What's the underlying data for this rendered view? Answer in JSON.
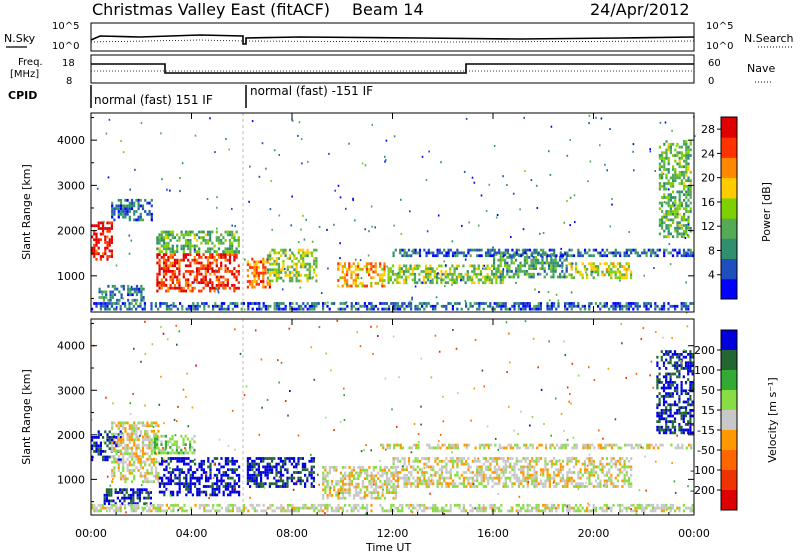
{
  "header": {
    "title": "Christmas Valley East (fitACF)",
    "beam": "Beam 14",
    "date": "24/Apr/2012"
  },
  "noise_panel": {
    "left_label": "N.Sky",
    "left_ticks": [
      "10^5",
      "10^0"
    ],
    "right_ticks": [
      "10^5",
      "10^0"
    ],
    "right_label": "N.Search"
  },
  "freq_panel": {
    "left_label_1": "Freq.",
    "left_label_2": "[MHz]",
    "left_ticks": [
      "18",
      "8"
    ],
    "right_ticks": [
      "60",
      "0"
    ],
    "right_label": "Nave"
  },
  "cpid": {
    "label": "CPID",
    "segments": [
      "normal (fast) 151 IF",
      "normal (fast) -151 IF"
    ]
  },
  "colors": {
    "power": [
      "#0000ff",
      "#1f4fbf",
      "#2f8f6f",
      "#55aa55",
      "#7fd000",
      "#ffcc00",
      "#ff8800",
      "#ff3300",
      "#e00000"
    ],
    "velocity": [
      "#0000dd",
      "#226633",
      "#33aa33",
      "#88dd44",
      "#c8c8c8",
      "#ff9900",
      "#ff6600",
      "#ee3300",
      "#dd0000"
    ]
  },
  "chart_data": [
    {
      "type": "heatmap",
      "title": "Power",
      "ylabel": "Slant Range [km]",
      "xlabel": "Time UT",
      "xticks": [
        "00:00",
        "04:00",
        "08:00",
        "12:00",
        "16:00",
        "20:00",
        "00:00"
      ],
      "xlim_hours": [
        0,
        24
      ],
      "ylim": [
        200,
        4600
      ],
      "yticks": [
        1000,
        2000,
        3000,
        4000
      ],
      "colorbar": {
        "label": "Power [dB]",
        "ticks": [
          4,
          8,
          12,
          16,
          20,
          24,
          28
        ],
        "range": [
          0,
          30
        ]
      },
      "features": [
        {
          "t_start": 0.0,
          "t_end": 0.9,
          "r_low": 1300,
          "r_high": 2200,
          "value_dB": 28
        },
        {
          "t_start": 0.3,
          "t_end": 2.2,
          "r_low": 400,
          "r_high": 800,
          "value_dB": 8
        },
        {
          "t_start": 0.8,
          "t_end": 2.5,
          "r_low": 2200,
          "r_high": 2700,
          "value_dB": 6
        },
        {
          "t_start": 2.6,
          "t_end": 6.0,
          "r_low": 600,
          "r_high": 1500,
          "value_dB": 26
        },
        {
          "t_start": 2.6,
          "t_end": 6.0,
          "r_low": 1500,
          "r_high": 2000,
          "value_dB": 12
        },
        {
          "t_start": 6.2,
          "t_end": 7.2,
          "r_low": 700,
          "r_high": 1400,
          "value_dB": 22
        },
        {
          "t_start": 7.0,
          "t_end": 9.1,
          "r_low": 800,
          "r_high": 1600,
          "value_dB": 14
        },
        {
          "t_start": 9.8,
          "t_end": 11.8,
          "r_low": 700,
          "r_high": 1300,
          "value_dB": 20
        },
        {
          "t_start": 11.8,
          "t_end": 16.5,
          "r_low": 800,
          "r_high": 1250,
          "value_dB": 14
        },
        {
          "t_start": 16.0,
          "t_end": 19.0,
          "r_low": 900,
          "r_high": 1500,
          "value_dB": 10
        },
        {
          "t_start": 19.0,
          "t_end": 21.6,
          "r_low": 900,
          "r_high": 1300,
          "value_dB": 16
        },
        {
          "t_start": 12.0,
          "t_end": 24.0,
          "r_low": 1400,
          "r_high": 1600,
          "value_dB": 6
        },
        {
          "t_start": 22.6,
          "t_end": 24.0,
          "r_low": 1800,
          "r_high": 4000,
          "value_dB": 12
        },
        {
          "t_start": 0.0,
          "t_end": 24.0,
          "r_low": 220,
          "r_high": 420,
          "value_dB": 6
        }
      ]
    },
    {
      "type": "heatmap",
      "title": "Velocity",
      "ylabel": "Slant Range [km]",
      "xlabel": "Time UT",
      "xticks": [
        "00:00",
        "04:00",
        "08:00",
        "12:00",
        "16:00",
        "20:00",
        "00:00"
      ],
      "xlim_hours": [
        0,
        24
      ],
      "ylim": [
        200,
        4600
      ],
      "yticks": [
        1000,
        2000,
        3000,
        4000
      ],
      "colorbar": {
        "label": "Velocity [m s⁻¹]",
        "ticks": [
          200,
          100,
          50,
          15,
          -15,
          -50,
          -100,
          -200
        ],
        "range": [
          -250,
          250
        ]
      },
      "features": [
        {
          "t_start": 0.0,
          "t_end": 1.3,
          "r_low": 1400,
          "r_high": 2100,
          "value_ms": 220
        },
        {
          "t_start": 0.5,
          "t_end": 2.5,
          "r_low": 400,
          "r_high": 800,
          "value_ms": 200
        },
        {
          "t_start": 0.8,
          "t_end": 2.8,
          "r_low": 900,
          "r_high": 2300,
          "value_ms": 0
        },
        {
          "t_start": 2.7,
          "t_end": 6.0,
          "r_low": 600,
          "r_high": 1500,
          "value_ms": 230
        },
        {
          "t_start": 2.5,
          "t_end": 4.2,
          "r_low": 1500,
          "r_high": 2000,
          "value_ms": 60
        },
        {
          "t_start": 6.2,
          "t_end": 9.0,
          "r_low": 800,
          "r_high": 1500,
          "value_ms": 210
        },
        {
          "t_start": 9.2,
          "t_end": 12.2,
          "r_low": 500,
          "r_high": 1300,
          "value_ms": 0
        },
        {
          "t_start": 12.0,
          "t_end": 21.6,
          "r_low": 800,
          "r_high": 1500,
          "value_ms": 0
        },
        {
          "t_start": 11.5,
          "t_end": 24.0,
          "r_low": 1650,
          "r_high": 1800,
          "value_ms": 0
        },
        {
          "t_start": 22.5,
          "t_end": 24.0,
          "r_low": 2000,
          "r_high": 3900,
          "value_ms": 210
        },
        {
          "t_start": 0.0,
          "t_end": 24.0,
          "r_low": 220,
          "r_high": 450,
          "value_ms": 20
        }
      ]
    },
    {
      "type": "line",
      "title": "Frequency",
      "ylim": [
        8,
        18
      ],
      "series": [
        {
          "x": [
            0.0,
            3.0,
            3.0,
            6.2,
            6.2,
            15.0,
            15.0,
            24.0
          ],
          "y": [
            15.5,
            15.5,
            11.5,
            11.5,
            11.5,
            11.5,
            15.5,
            15.5
          ]
        }
      ]
    }
  ]
}
